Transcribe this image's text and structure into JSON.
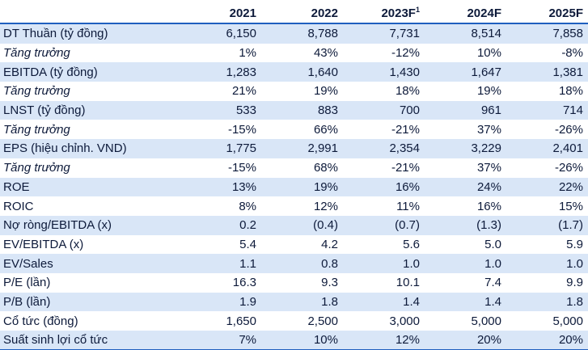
{
  "headers": [
    "2021",
    "2022",
    "2023F",
    "2024F",
    "2025F"
  ],
  "header_sup": [
    "",
    "",
    "1",
    "",
    ""
  ],
  "rows": [
    {
      "label": "DT Thuần (tỷ đồng)",
      "italic": false,
      "values": [
        "6,150",
        "8,788",
        "7,731",
        "8,514",
        "7,858"
      ]
    },
    {
      "label": "Tăng trưởng",
      "italic": true,
      "values": [
        "1%",
        "43%",
        "-12%",
        "10%",
        "-8%"
      ]
    },
    {
      "label": "EBITDA (tỷ đồng)",
      "italic": false,
      "values": [
        "1,283",
        "1,640",
        "1,430",
        "1,647",
        "1,381"
      ]
    },
    {
      "label": "Tăng trưởng",
      "italic": true,
      "values": [
        "21%",
        "19%",
        "18%",
        "19%",
        "18%"
      ]
    },
    {
      "label": "LNST (tỷ đồng)",
      "italic": false,
      "values": [
        "533",
        "883",
        "700",
        "961",
        "714"
      ]
    },
    {
      "label": "Tăng trưởng",
      "italic": true,
      "values": [
        "-15%",
        "66%",
        "-21%",
        "37%",
        "-26%"
      ]
    },
    {
      "label": "EPS (hiệu chỉnh. VND)",
      "italic": false,
      "values": [
        "1,775",
        "2,991",
        "2,354",
        "3,229",
        "2,401"
      ]
    },
    {
      "label": "Tăng trưởng",
      "italic": true,
      "values": [
        "-15%",
        "68%",
        "-21%",
        "37%",
        "-26%"
      ]
    },
    {
      "label": "ROE",
      "italic": false,
      "values": [
        "13%",
        "19%",
        "16%",
        "24%",
        "22%"
      ]
    },
    {
      "label": "ROIC",
      "italic": false,
      "values": [
        "8%",
        "12%",
        "11%",
        "16%",
        "15%"
      ]
    },
    {
      "label": "Nợ ròng/EBITDA (x)",
      "italic": false,
      "values": [
        "0.2",
        "(0.4)",
        "(0.7)",
        "(1.3)",
        "(1.7)"
      ]
    },
    {
      "label": "EV/EBITDA (x)",
      "italic": false,
      "values": [
        "5.4",
        "4.2",
        "5.6",
        "5.0",
        "5.9"
      ]
    },
    {
      "label": "EV/Sales",
      "italic": false,
      "values": [
        "1.1",
        "0.8",
        "1.0",
        "1.0",
        "1.0"
      ]
    },
    {
      "label": "P/E (lần)",
      "italic": false,
      "values": [
        "16.3",
        "9.3",
        "10.1",
        "7.4",
        "9.9"
      ]
    },
    {
      "label": "P/B (lần)",
      "italic": false,
      "values": [
        "1.9",
        "1.8",
        "1.4",
        "1.4",
        "1.8"
      ]
    },
    {
      "label": "Cổ tức (đồng)",
      "italic": false,
      "values": [
        "1,650",
        "2,500",
        "3,000",
        "5,000",
        "5,000"
      ]
    },
    {
      "label": "Suất sinh lợi cổ tức",
      "italic": false,
      "values": [
        "7%",
        "10%",
        "12%",
        "20%",
        "20%"
      ]
    }
  ]
}
